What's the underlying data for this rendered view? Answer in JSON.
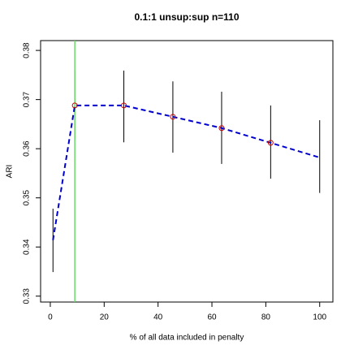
{
  "chart_data": {
    "type": "line",
    "title": "0.1:1 unsup:sup n=110",
    "xlabel": "% of all data included in penalty",
    "ylabel": "ARI",
    "x": [
      1,
      9.1,
      27.3,
      45.5,
      63.6,
      81.8,
      100
    ],
    "series": [
      {
        "color": "#0000cc",
        "marker_color": "#cc0000",
        "values": [
          0.3414,
          0.3688,
          0.3688,
          0.3665,
          0.3642,
          0.3612,
          0.3582
        ],
        "lower": [
          0.3349,
          0.3618,
          0.3613,
          0.3592,
          0.3569,
          0.3539,
          0.351
        ],
        "upper": [
          0.3478,
          0.3759,
          0.3759,
          0.3737,
          0.3716,
          0.3688,
          0.3658
        ],
        "marked": [
          false,
          true,
          true,
          true,
          true,
          true,
          false
        ]
      }
    ],
    "vline": {
      "x": 9.1,
      "color": "#66dd66"
    },
    "xlim": [
      -3.6,
      104.9
    ],
    "ylim": [
      0.3288,
      0.382
    ],
    "xticks": [
      0,
      20,
      40,
      60,
      80,
      100
    ],
    "yticks": [
      0.33,
      0.34,
      0.35,
      0.36,
      0.37,
      0.38
    ]
  }
}
